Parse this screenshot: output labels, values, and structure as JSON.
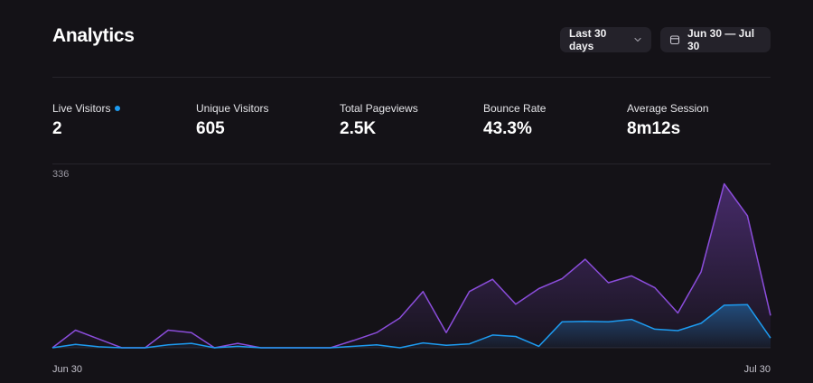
{
  "header": {
    "title": "Analytics",
    "range_label": "Last 30 days",
    "range_icon": "chevron-down-icon",
    "date_range": "Jun 30 — Jul 30",
    "date_icon": "calendar-icon"
  },
  "stats": [
    {
      "label": "Live Visitors",
      "value": "2",
      "live": true
    },
    {
      "label": "Unique Visitors",
      "value": "605"
    },
    {
      "label": "Total Pageviews",
      "value": "2.5K"
    },
    {
      "label": "Bounce Rate",
      "value": "43.3%"
    },
    {
      "label": "Average Session",
      "value": "8m12s"
    }
  ],
  "colors": {
    "pageviews": "#8b4ddb",
    "visitors": "#1d9bf0",
    "live_dot": "#1d9bf0"
  },
  "chart_data": {
    "type": "area",
    "y_max_label": "336",
    "ylim": [
      0,
      336
    ],
    "x_start_label": "Jun 30",
    "x_end_label": "Jul 30",
    "grid": false,
    "series": [
      {
        "values": [
          0,
          36,
          18,
          0,
          0,
          36,
          31,
          0,
          9,
          0,
          0,
          0,
          0,
          15,
          31,
          61,
          115,
          31,
          115,
          140,
          89,
          121,
          141,
          181,
          133,
          147,
          123,
          71,
          155,
          335,
          270,
          66
        ]
      },
      {
        "values": [
          0,
          7,
          2,
          0,
          0,
          6,
          9,
          0,
          3,
          0,
          0,
          0,
          0,
          3,
          6,
          0,
          10,
          5,
          8,
          26,
          23,
          3,
          53,
          54,
          53,
          58,
          38,
          35,
          50,
          87,
          88,
          20
        ]
      }
    ]
  }
}
